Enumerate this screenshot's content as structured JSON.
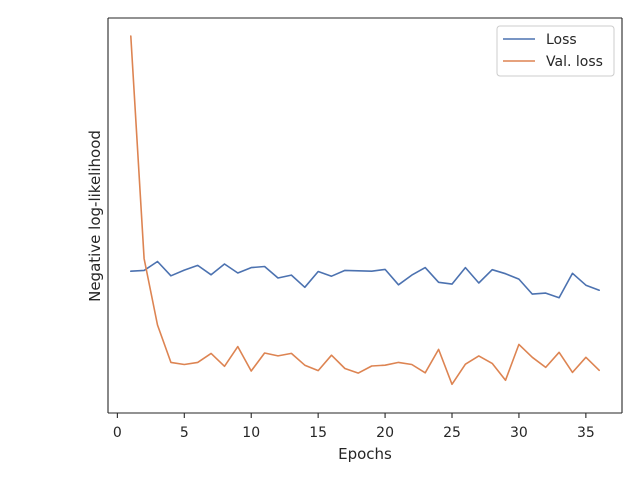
{
  "chart_data": {
    "type": "line",
    "title": "",
    "xlabel": "Epochs",
    "ylabel": "Negative log-likelihood",
    "xlim": [
      -0.7,
      37.7
    ],
    "ylim": [
      -0.05,
      1.05
    ],
    "x_ticks": [
      0,
      5,
      10,
      15,
      20,
      25,
      30,
      35
    ],
    "y_ticks_shown": false,
    "grid": false,
    "legend_position": "top-right",
    "x": [
      1,
      2,
      3,
      4,
      5,
      6,
      7,
      8,
      9,
      10,
      11,
      12,
      13,
      14,
      15,
      16,
      17,
      18,
      19,
      20,
      21,
      22,
      23,
      24,
      25,
      26,
      27,
      28,
      29,
      30,
      31,
      32,
      33,
      34,
      35,
      36
    ],
    "series": [
      {
        "name": "Loss",
        "color": "#4c72b0",
        "values": [
          0.345,
          0.347,
          0.372,
          0.332,
          0.348,
          0.361,
          0.335,
          0.365,
          0.34,
          0.355,
          0.358,
          0.326,
          0.334,
          0.3,
          0.344,
          0.331,
          0.347,
          0.346,
          0.345,
          0.35,
          0.307,
          0.334,
          0.355,
          0.314,
          0.309,
          0.355,
          0.312,
          0.349,
          0.338,
          0.323,
          0.281,
          0.284,
          0.271,
          0.339,
          0.306,
          0.292
        ]
      },
      {
        "name": "Val. loss",
        "color": "#dd8452",
        "values": [
          1.0,
          0.38,
          0.195,
          0.091,
          0.085,
          0.091,
          0.116,
          0.08,
          0.135,
          0.067,
          0.117,
          0.109,
          0.116,
          0.083,
          0.068,
          0.111,
          0.074,
          0.061,
          0.081,
          0.083,
          0.091,
          0.085,
          0.062,
          0.127,
          0.03,
          0.086,
          0.109,
          0.088,
          0.041,
          0.141,
          0.105,
          0.077,
          0.119,
          0.063,
          0.105,
          0.069
        ]
      }
    ]
  }
}
